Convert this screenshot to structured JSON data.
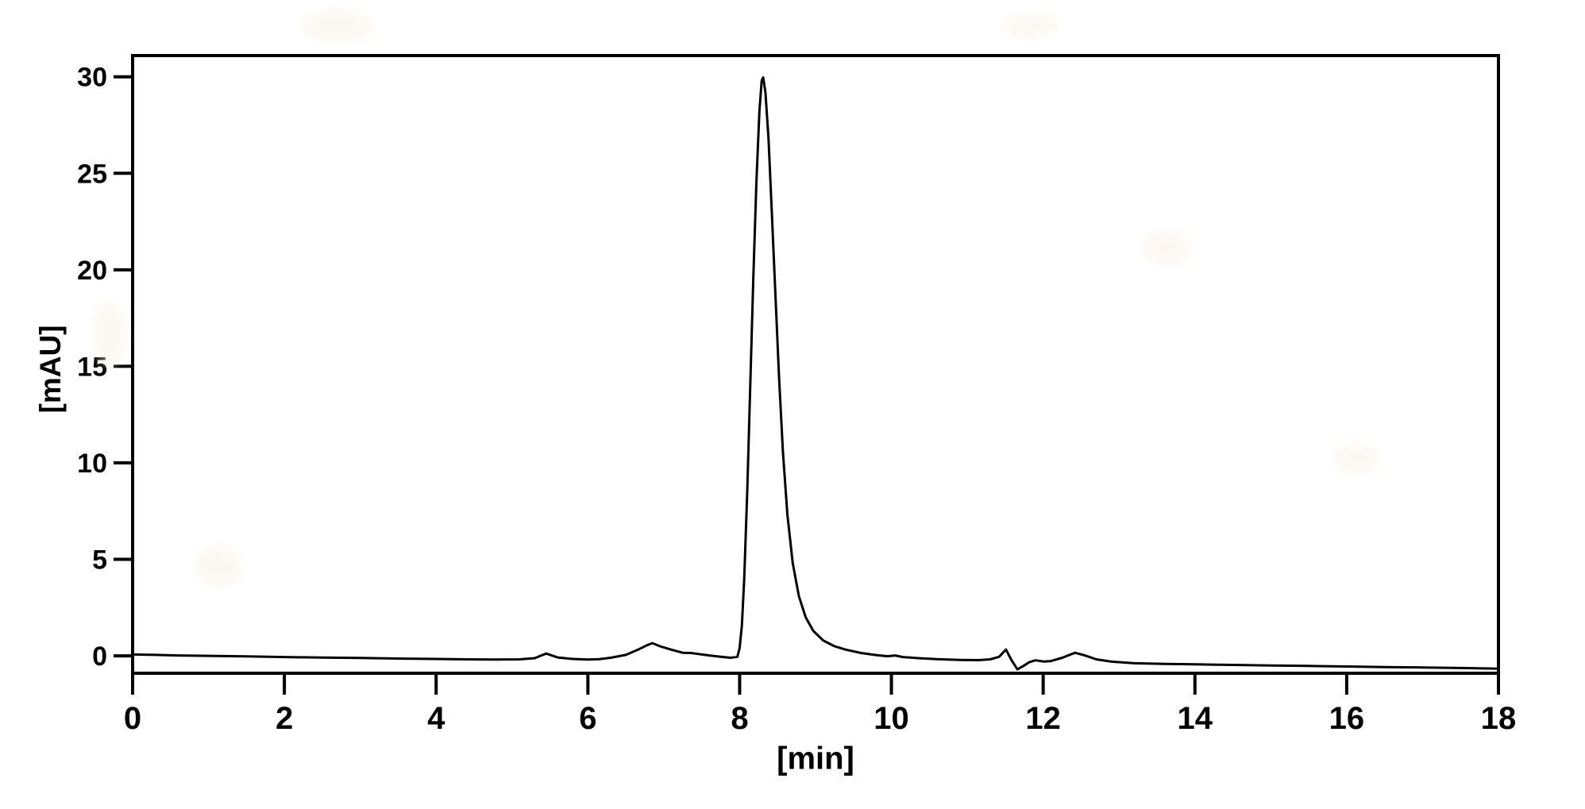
{
  "figure": {
    "background_color": "#ffffff",
    "line_color": "#000000",
    "artifact_tint": "#f7f1e2"
  },
  "chart_data": {
    "type": "line",
    "title": "",
    "xlabel": "[min]",
    "ylabel": "[mAU]",
    "xlim": [
      0,
      18
    ],
    "ylim": [
      -0.9,
      31.1
    ],
    "x_ticks": [
      0,
      2,
      4,
      6,
      8,
      10,
      12,
      14,
      16,
      18
    ],
    "y_ticks": [
      0,
      5,
      10,
      15,
      20,
      25,
      30
    ],
    "grid": false,
    "legend": "none",
    "frame": "full-box",
    "series": [
      {
        "name": "absorbance-trace",
        "color": "#000000",
        "points": [
          [
            0.0,
            0.07
          ],
          [
            0.3,
            0.05
          ],
          [
            0.6,
            0.02
          ],
          [
            1.0,
            0.0
          ],
          [
            1.5,
            -0.03
          ],
          [
            2.0,
            -0.06
          ],
          [
            2.5,
            -0.09
          ],
          [
            3.0,
            -0.11
          ],
          [
            3.5,
            -0.14
          ],
          [
            4.0,
            -0.16
          ],
          [
            4.4,
            -0.18
          ],
          [
            4.8,
            -0.19
          ],
          [
            5.1,
            -0.18
          ],
          [
            5.3,
            -0.12
          ],
          [
            5.45,
            0.12
          ],
          [
            5.6,
            -0.08
          ],
          [
            5.8,
            -0.16
          ],
          [
            6.0,
            -0.19
          ],
          [
            6.15,
            -0.17
          ],
          [
            6.3,
            -0.1
          ],
          [
            6.5,
            0.05
          ],
          [
            6.65,
            0.3
          ],
          [
            6.78,
            0.55
          ],
          [
            6.85,
            0.66
          ],
          [
            6.95,
            0.5
          ],
          [
            7.1,
            0.32
          ],
          [
            7.25,
            0.16
          ],
          [
            7.36,
            0.15
          ],
          [
            7.45,
            0.1
          ],
          [
            7.6,
            0.02
          ],
          [
            7.75,
            -0.05
          ],
          [
            7.88,
            -0.1
          ],
          [
            7.97,
            -0.05
          ],
          [
            8.0,
            0.4
          ],
          [
            8.03,
            1.6
          ],
          [
            8.06,
            4.0
          ],
          [
            8.1,
            8.5
          ],
          [
            8.14,
            14.0
          ],
          [
            8.18,
            19.5
          ],
          [
            8.22,
            24.5
          ],
          [
            8.26,
            28.2
          ],
          [
            8.29,
            29.8
          ],
          [
            8.31,
            29.97
          ],
          [
            8.34,
            29.2
          ],
          [
            8.38,
            26.8
          ],
          [
            8.42,
            23.3
          ],
          [
            8.47,
            18.8
          ],
          [
            8.52,
            14.4
          ],
          [
            8.57,
            10.6
          ],
          [
            8.63,
            7.3
          ],
          [
            8.7,
            4.8
          ],
          [
            8.78,
            3.1
          ],
          [
            8.87,
            2.0
          ],
          [
            8.97,
            1.3
          ],
          [
            9.1,
            0.8
          ],
          [
            9.25,
            0.5
          ],
          [
            9.4,
            0.32
          ],
          [
            9.6,
            0.15
          ],
          [
            9.8,
            0.04
          ],
          [
            9.95,
            -0.02
          ],
          [
            10.05,
            0.02
          ],
          [
            10.15,
            -0.06
          ],
          [
            10.35,
            -0.12
          ],
          [
            10.6,
            -0.17
          ],
          [
            10.9,
            -0.21
          ],
          [
            11.15,
            -0.22
          ],
          [
            11.3,
            -0.18
          ],
          [
            11.42,
            -0.05
          ],
          [
            11.51,
            0.33
          ],
          [
            11.58,
            -0.2
          ],
          [
            11.66,
            -0.7
          ],
          [
            11.74,
            -0.52
          ],
          [
            11.82,
            -0.32
          ],
          [
            11.9,
            -0.23
          ],
          [
            12.0,
            -0.29
          ],
          [
            12.1,
            -0.27
          ],
          [
            12.25,
            -0.1
          ],
          [
            12.42,
            0.16
          ],
          [
            12.55,
            0.02
          ],
          [
            12.7,
            -0.18
          ],
          [
            12.9,
            -0.3
          ],
          [
            13.2,
            -0.38
          ],
          [
            13.6,
            -0.42
          ],
          [
            14.0,
            -0.44
          ],
          [
            14.5,
            -0.47
          ],
          [
            15.0,
            -0.5
          ],
          [
            15.5,
            -0.52
          ],
          [
            16.0,
            -0.55
          ],
          [
            16.5,
            -0.58
          ],
          [
            17.0,
            -0.6
          ],
          [
            17.5,
            -0.63
          ],
          [
            18.0,
            -0.66
          ]
        ]
      }
    ]
  }
}
